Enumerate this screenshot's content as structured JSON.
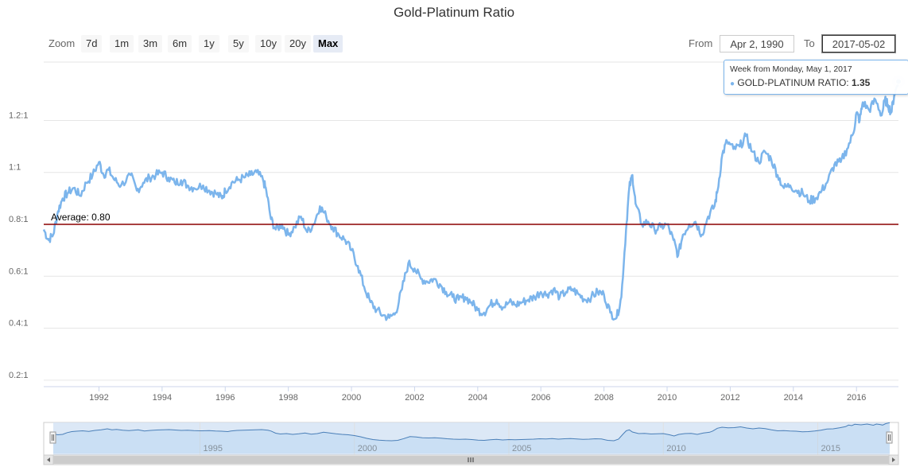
{
  "chart_data": {
    "type": "line",
    "title": "Gold-Platinum Ratio",
    "series": [
      {
        "name": "GOLD-PLATINUM RATIO",
        "color": "#7cb5ec",
        "points": [
          [
            1990.25,
            0.78
          ],
          [
            1990.4,
            0.74
          ],
          [
            1990.55,
            0.76
          ],
          [
            1990.7,
            0.85
          ],
          [
            1990.85,
            0.9
          ],
          [
            1991.0,
            0.92
          ],
          [
            1991.2,
            0.94
          ],
          [
            1991.4,
            0.91
          ],
          [
            1991.6,
            0.96
          ],
          [
            1991.8,
            0.99
          ],
          [
            1992.0,
            1.04
          ],
          [
            1992.15,
            0.99
          ],
          [
            1992.3,
            1.01
          ],
          [
            1992.5,
            0.97
          ],
          [
            1992.7,
            0.95
          ],
          [
            1993.0,
            0.99
          ],
          [
            1993.2,
            0.93
          ],
          [
            1993.4,
            0.96
          ],
          [
            1993.6,
            0.98
          ],
          [
            1993.8,
            0.99
          ],
          [
            1994.0,
            1.0
          ],
          [
            1994.2,
            0.98
          ],
          [
            1994.4,
            0.96
          ],
          [
            1994.6,
            0.97
          ],
          [
            1994.8,
            0.95
          ],
          [
            1995.0,
            0.94
          ],
          [
            1995.3,
            0.95
          ],
          [
            1995.5,
            0.93
          ],
          [
            1995.7,
            0.92
          ],
          [
            1995.9,
            0.9
          ],
          [
            1996.0,
            0.93
          ],
          [
            1996.2,
            0.96
          ],
          [
            1996.4,
            0.97
          ],
          [
            1996.6,
            0.98
          ],
          [
            1996.8,
            0.99
          ],
          [
            1997.0,
            1.0
          ],
          [
            1997.2,
            0.97
          ],
          [
            1997.3,
            0.93
          ],
          [
            1997.45,
            0.82
          ],
          [
            1997.6,
            0.78
          ],
          [
            1997.8,
            0.8
          ],
          [
            1998.0,
            0.76
          ],
          [
            1998.2,
            0.79
          ],
          [
            1998.4,
            0.83
          ],
          [
            1998.6,
            0.77
          ],
          [
            1998.8,
            0.8
          ],
          [
            1999.0,
            0.87
          ],
          [
            1999.2,
            0.83
          ],
          [
            1999.4,
            0.79
          ],
          [
            1999.6,
            0.76
          ],
          [
            1999.8,
            0.74
          ],
          [
            2000.0,
            0.7
          ],
          [
            2000.2,
            0.64
          ],
          [
            2000.4,
            0.56
          ],
          [
            2000.6,
            0.5
          ],
          [
            2000.8,
            0.47
          ],
          [
            2001.0,
            0.45
          ],
          [
            2001.2,
            0.44
          ],
          [
            2001.4,
            0.46
          ],
          [
            2001.6,
            0.55
          ],
          [
            2001.8,
            0.65
          ],
          [
            2002.0,
            0.63
          ],
          [
            2002.2,
            0.59
          ],
          [
            2002.4,
            0.58
          ],
          [
            2002.6,
            0.59
          ],
          [
            2002.8,
            0.57
          ],
          [
            2003.0,
            0.54
          ],
          [
            2003.2,
            0.52
          ],
          [
            2003.4,
            0.51
          ],
          [
            2003.6,
            0.52
          ],
          [
            2003.8,
            0.5
          ],
          [
            2004.0,
            0.47
          ],
          [
            2004.2,
            0.46
          ],
          [
            2004.4,
            0.49
          ],
          [
            2004.6,
            0.51
          ],
          [
            2004.8,
            0.48
          ],
          [
            2005.0,
            0.5
          ],
          [
            2005.2,
            0.49
          ],
          [
            2005.4,
            0.5
          ],
          [
            2005.6,
            0.51
          ],
          [
            2005.8,
            0.52
          ],
          [
            2006.0,
            0.54
          ],
          [
            2006.2,
            0.53
          ],
          [
            2006.4,
            0.55
          ],
          [
            2006.6,
            0.52
          ],
          [
            2006.8,
            0.54
          ],
          [
            2007.0,
            0.55
          ],
          [
            2007.2,
            0.53
          ],
          [
            2007.4,
            0.51
          ],
          [
            2007.6,
            0.52
          ],
          [
            2007.8,
            0.54
          ],
          [
            2008.0,
            0.53
          ],
          [
            2008.2,
            0.46
          ],
          [
            2008.4,
            0.44
          ],
          [
            2008.55,
            0.52
          ],
          [
            2008.7,
            0.78
          ],
          [
            2008.8,
            0.94
          ],
          [
            2008.9,
            0.99
          ],
          [
            2009.0,
            0.88
          ],
          [
            2009.2,
            0.8
          ],
          [
            2009.4,
            0.81
          ],
          [
            2009.6,
            0.78
          ],
          [
            2009.8,
            0.79
          ],
          [
            2010.0,
            0.8
          ],
          [
            2010.2,
            0.74
          ],
          [
            2010.35,
            0.68
          ],
          [
            2010.5,
            0.76
          ],
          [
            2010.7,
            0.8
          ],
          [
            2010.9,
            0.81
          ],
          [
            2011.1,
            0.76
          ],
          [
            2011.3,
            0.83
          ],
          [
            2011.5,
            0.87
          ],
          [
            2011.6,
            0.93
          ],
          [
            2011.75,
            1.07
          ],
          [
            2011.9,
            1.12
          ],
          [
            2012.1,
            1.09
          ],
          [
            2012.3,
            1.1
          ],
          [
            2012.5,
            1.14
          ],
          [
            2012.7,
            1.08
          ],
          [
            2012.9,
            1.04
          ],
          [
            2013.1,
            1.08
          ],
          [
            2013.3,
            1.05
          ],
          [
            2013.5,
            0.99
          ],
          [
            2013.7,
            0.94
          ],
          [
            2013.9,
            0.95
          ],
          [
            2014.1,
            0.93
          ],
          [
            2014.3,
            0.92
          ],
          [
            2014.5,
            0.89
          ],
          [
            2014.7,
            0.9
          ],
          [
            2014.9,
            0.93
          ],
          [
            2015.1,
            0.97
          ],
          [
            2015.3,
            1.03
          ],
          [
            2015.5,
            1.04
          ],
          [
            2015.7,
            1.09
          ],
          [
            2015.9,
            1.15
          ],
          [
            2016.0,
            1.23
          ],
          [
            2016.1,
            1.2
          ],
          [
            2016.2,
            1.27
          ],
          [
            2016.4,
            1.24
          ],
          [
            2016.6,
            1.28
          ],
          [
            2016.8,
            1.22
          ],
          [
            2016.9,
            1.28
          ],
          [
            2017.0,
            1.26
          ],
          [
            2017.1,
            1.23
          ],
          [
            2017.2,
            1.3
          ],
          [
            2017.33,
            1.35
          ]
        ]
      }
    ],
    "xlim": [
      1990.25,
      2017.33
    ],
    "ylim": [
      0.2,
      1.4
    ],
    "x_ticks": [
      1992,
      1994,
      1996,
      1998,
      2000,
      2002,
      2004,
      2006,
      2008,
      2010,
      2012,
      2014,
      2016
    ],
    "x_tick_labels": [
      "1992",
      "1994",
      "1996",
      "1998",
      "2000",
      "2002",
      "2004",
      "2006",
      "2008",
      "2010",
      "2012",
      "2014",
      "2016"
    ],
    "y_ticks": [
      0.2,
      0.4,
      0.6,
      0.8,
      1.0,
      1.2
    ],
    "y_tick_labels": [
      "0.2:1",
      "0.4:1",
      "0.6:1",
      "0.8:1",
      "1:1",
      "1.2:1"
    ],
    "grid": true,
    "average": {
      "value": 0.8,
      "label": "Average: 0.80",
      "color": "#8b0000"
    },
    "navigator": {
      "ticks": [
        1995,
        2000,
        2005,
        2010,
        2015
      ],
      "tick_labels": [
        "1995",
        "2000",
        "2005",
        "2010",
        "2015"
      ]
    }
  },
  "range_selector": {
    "zoom_label": "Zoom",
    "buttons": [
      "7d",
      "1m",
      "3m",
      "6m",
      "1y",
      "5y",
      "10y",
      "20y",
      "Max"
    ],
    "active": "Max",
    "from_label": "From",
    "from_value": "Apr 2, 1990",
    "to_label": "To",
    "to_value": "2017-05-02"
  },
  "tooltip": {
    "header": "Week from Monday, May 1, 2017",
    "series_label": "GOLD-PLATINUM RATIO:",
    "value": "1.35"
  }
}
